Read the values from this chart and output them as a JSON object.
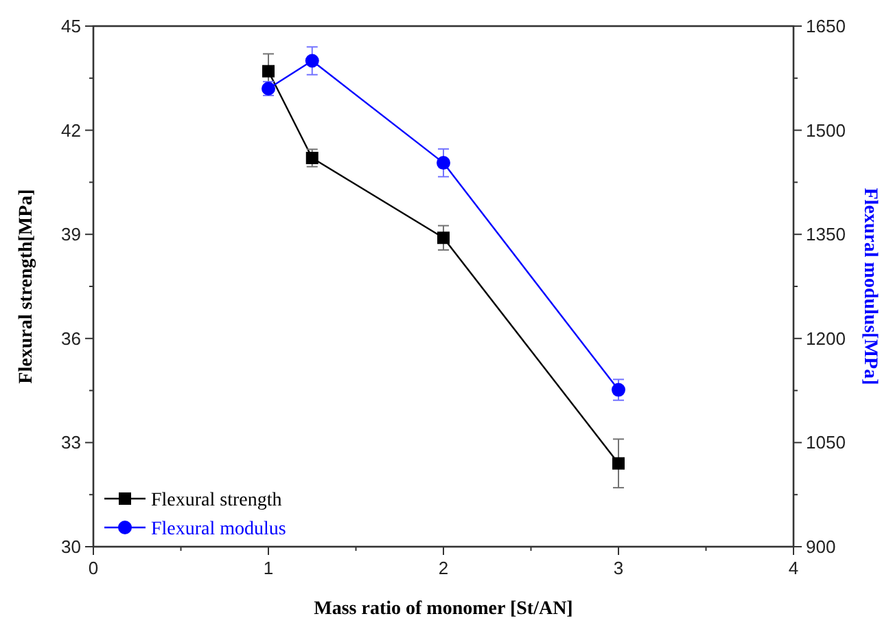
{
  "chart_data": {
    "type": "line",
    "xlabel": "Mass ratio of monomer [St/AN]",
    "ylabel": "Flexural strength[MPa]",
    "y2label": "Flexural modulus[MPa]",
    "x": [
      1,
      1.25,
      2,
      3
    ],
    "xlim": [
      0,
      4
    ],
    "xticks": [
      0,
      1,
      2,
      3,
      4
    ],
    "ylim": [
      30,
      45
    ],
    "yticks": [
      30,
      33,
      36,
      39,
      42,
      45
    ],
    "y2lim": [
      900,
      1650
    ],
    "y2ticks": [
      900,
      1050,
      1200,
      1350,
      1500,
      1650
    ],
    "series": [
      {
        "name": "Flexural strength",
        "color": "#000000",
        "marker": "square",
        "values": [
          43.7,
          41.2,
          38.9,
          32.4
        ],
        "errors": [
          0.5,
          0.25,
          0.35,
          0.7
        ]
      },
      {
        "name": "Flexural modulus",
        "color": "#0000ff",
        "marker": "circle",
        "axis": "y2",
        "values": [
          1560,
          1600,
          1453,
          1126
        ],
        "errors": [
          10,
          20,
          20,
          15
        ]
      }
    ],
    "legend": "bottom left",
    "grid": false,
    "line_style": "solid"
  }
}
